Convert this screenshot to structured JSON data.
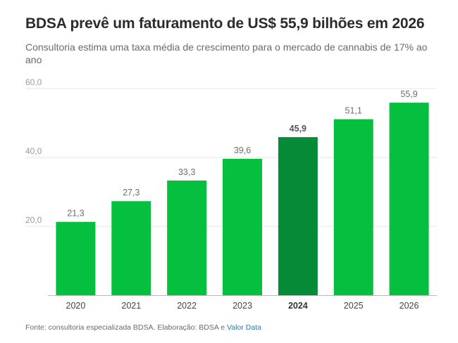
{
  "chart_data": {
    "type": "bar",
    "title": "BDSA prevê um faturamento de US$ 55,9 bilhões em 2026",
    "subtitle": "Consultoria estima uma taxa média de crescimento para o mercado de cannabis de 17% ao ano",
    "categories": [
      "2020",
      "2021",
      "2022",
      "2023",
      "2024",
      "2025",
      "2026"
    ],
    "values": [
      21.3,
      27.3,
      33.3,
      39.6,
      45.9,
      51.1,
      55.9
    ],
    "value_labels": [
      "21,3",
      "27,3",
      "33,3",
      "39,6",
      "45,9",
      "51,1",
      "55,9"
    ],
    "highlight_category": "2024",
    "xlabel": "",
    "ylabel": "",
    "ylim": [
      0,
      60
    ],
    "y_ticks": [
      20,
      40,
      60
    ],
    "y_tick_labels": [
      "20,0",
      "40,0",
      "60,0"
    ],
    "grid": true,
    "legend": "none",
    "colors": {
      "bar": "#05c03e",
      "bar_highlight": "#078a38",
      "grid": "#e6e6e6",
      "axis": "#bbbbbb",
      "source_link": "#1a7ea8"
    },
    "source": {
      "prefix": "Fonte: consultoria especializada BDSA. Elaboração: BDSA e ",
      "link": "Valor Data"
    }
  }
}
